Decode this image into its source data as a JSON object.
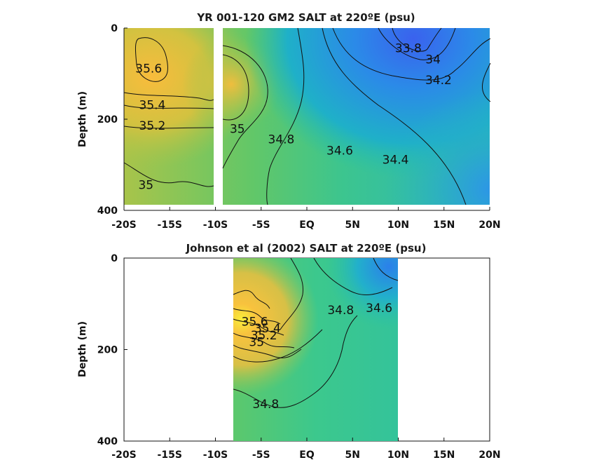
{
  "chart_data": [
    {
      "type": "heatmap",
      "title": "YR 001-120 GM2 SALT at 220ºE (psu)",
      "ylabel": "Depth (m)",
      "xlim": [
        -20,
        20
      ],
      "ylim": [
        0,
        400
      ],
      "x_tick_labels": [
        "-20S",
        "-15S",
        "-10S",
        "-5S",
        "EQ",
        "5N",
        "10N",
        "15N",
        "20N"
      ],
      "y_tick_labels": [
        "0",
        "200",
        "400"
      ],
      "data_extent": {
        "lat": [
          -20,
          20
        ],
        "depth": [
          0,
          390
        ]
      },
      "gap_lat": [
        -10.2,
        -9.6
      ],
      "contours": [
        {
          "label": "35.6",
          "lat": -17.3,
          "depth": 90
        },
        {
          "label": "35.4",
          "lat": -16.9,
          "depth": 170
        },
        {
          "label": "35.2",
          "lat": -16.9,
          "depth": 215
        },
        {
          "label": "35",
          "lat": -17.6,
          "depth": 345
        },
        {
          "label": "35",
          "lat": -7.6,
          "depth": 222
        },
        {
          "label": "34.8",
          "lat": -2.8,
          "depth": 245
        },
        {
          "label": "34.6",
          "lat": 3.6,
          "depth": 270
        },
        {
          "label": "34.4",
          "lat": 9.7,
          "depth": 290
        },
        {
          "label": "34.2",
          "lat": 14.4,
          "depth": 115
        },
        {
          "label": "34",
          "lat": 13.8,
          "depth": 70
        },
        {
          "label": "33.8",
          "lat": 11.1,
          "depth": 45
        }
      ]
    },
    {
      "type": "heatmap",
      "title": "Johnson et al (2002) SALT at 220ºE (psu)",
      "ylabel": "Depth (m)",
      "xlim": [
        -20,
        20
      ],
      "ylim": [
        0,
        400
      ],
      "x_tick_labels": [
        "-20S",
        "-15S",
        "-10S",
        "-5S",
        "EQ",
        "5N",
        "10N",
        "15N",
        "20N"
      ],
      "y_tick_labels": [
        "0",
        "200",
        "400"
      ],
      "data_extent": {
        "lat": [
          -8,
          10
        ],
        "depth": [
          0,
          400
        ]
      },
      "contours": [
        {
          "label": "35.6",
          "lat": -5.7,
          "depth": 140
        },
        {
          "label": "35.4",
          "lat": -4.3,
          "depth": 155
        },
        {
          "label": "35.2",
          "lat": -4.7,
          "depth": 170
        },
        {
          "label": "35",
          "lat": -5.5,
          "depth": 185
        },
        {
          "label": "34.8",
          "lat": 3.7,
          "depth": 115
        },
        {
          "label": "34.6",
          "lat": 7.9,
          "depth": 110
        },
        {
          "label": "34.8",
          "lat": -4.5,
          "depth": 320
        }
      ]
    }
  ]
}
